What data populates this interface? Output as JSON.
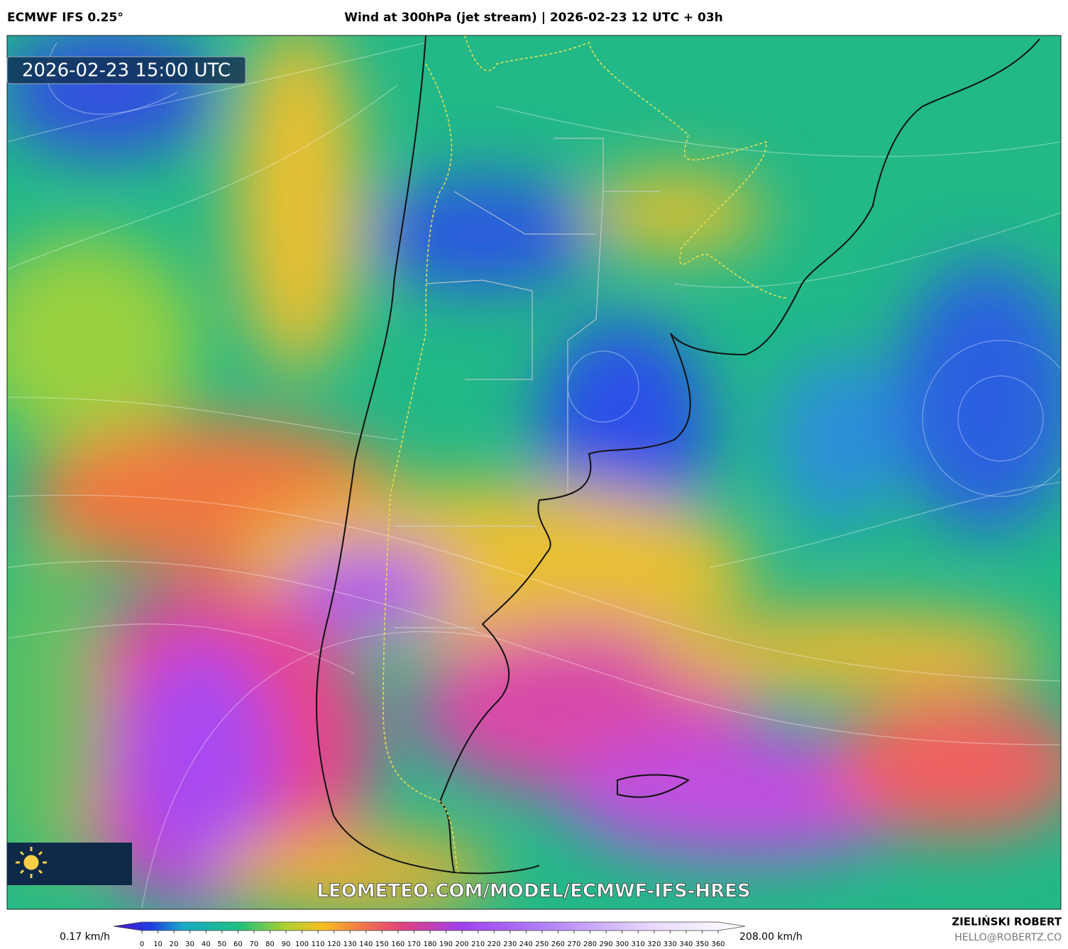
{
  "header": {
    "model": "ECMWF IFS 0.25°",
    "title": "Wind at 300hPa (jet stream) | 2026-02-23 12 UTC + 03h"
  },
  "map": {
    "timestamp": "2026-02-23 15:00 UTC",
    "watermark": "LEOMETEO.COM/MODEL/ECMWF-IFS-HRES"
  },
  "colorbar": {
    "min_label": "0.17 km/h",
    "max_label": "208.00 km/h",
    "ticks": [
      0,
      10,
      20,
      30,
      40,
      50,
      60,
      70,
      80,
      90,
      100,
      110,
      120,
      130,
      140,
      150,
      160,
      170,
      180,
      190,
      200,
      210,
      220,
      230,
      240,
      250,
      260,
      270,
      280,
      290,
      300,
      310,
      320,
      330,
      340,
      350,
      360
    ]
  },
  "footer": {
    "author": "ZIELIŃSKI ROBERT",
    "contact": "HELLO@ROBERTZ.CO"
  }
}
